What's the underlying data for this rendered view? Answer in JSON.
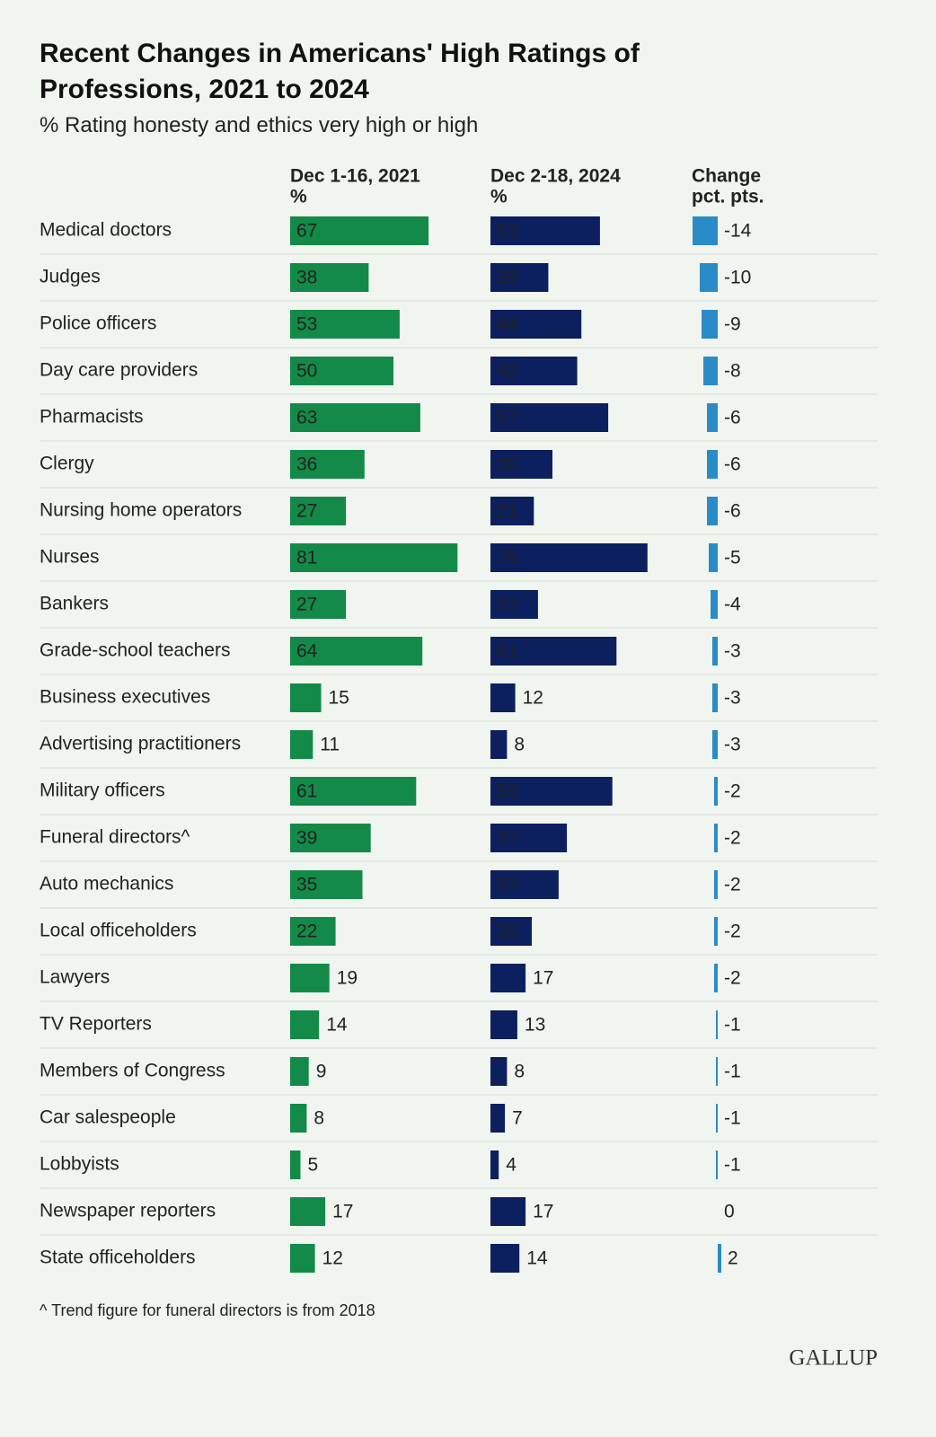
{
  "chart_data": {
    "type": "bar",
    "title": "Recent Changes in Americans' High Ratings of Professions, 2021 to 2024",
    "subtitle": "% Rating honesty and ethics very high or high",
    "categories": [
      "Medical doctors",
      "Judges",
      "Police officers",
      "Day care providers",
      "Pharmacists",
      "Clergy",
      "Nursing home operators",
      "Nurses",
      "Bankers",
      "Grade-school teachers",
      "Business executives",
      "Advertising practitioners",
      "Military officers",
      "Funeral directors^",
      "Auto mechanics",
      "Local officeholders",
      "Lawyers",
      "TV Reporters",
      "Members of Congress",
      "Car salespeople",
      "Lobbyists",
      "Newspaper reporters",
      "State officeholders"
    ],
    "series": [
      {
        "name": "Dec 1-16, 2021",
        "unit": "%",
        "color": "#138a48",
        "values": [
          67,
          38,
          53,
          50,
          63,
          36,
          27,
          81,
          27,
          64,
          15,
          11,
          61,
          39,
          35,
          22,
          19,
          14,
          9,
          8,
          5,
          17,
          12
        ]
      },
      {
        "name": "Dec 2-18, 2024",
        "unit": "%",
        "color": "#0c1f5e",
        "values": [
          53,
          28,
          44,
          42,
          57,
          30,
          21,
          76,
          23,
          61,
          12,
          8,
          59,
          37,
          33,
          20,
          17,
          13,
          8,
          7,
          4,
          17,
          14
        ]
      },
      {
        "name": "Change",
        "unit": "pct. pts.",
        "color": "#2b8bc6",
        "values": [
          -14,
          -10,
          -9,
          -8,
          -6,
          -6,
          -6,
          -5,
          -4,
          -3,
          -3,
          -3,
          -2,
          -2,
          -2,
          -2,
          -2,
          -1,
          -1,
          -1,
          -1,
          0,
          2
        ]
      }
    ],
    "footnote": "^ Trend figure for funeral directors is from 2018",
    "source": "GALLUP"
  }
}
